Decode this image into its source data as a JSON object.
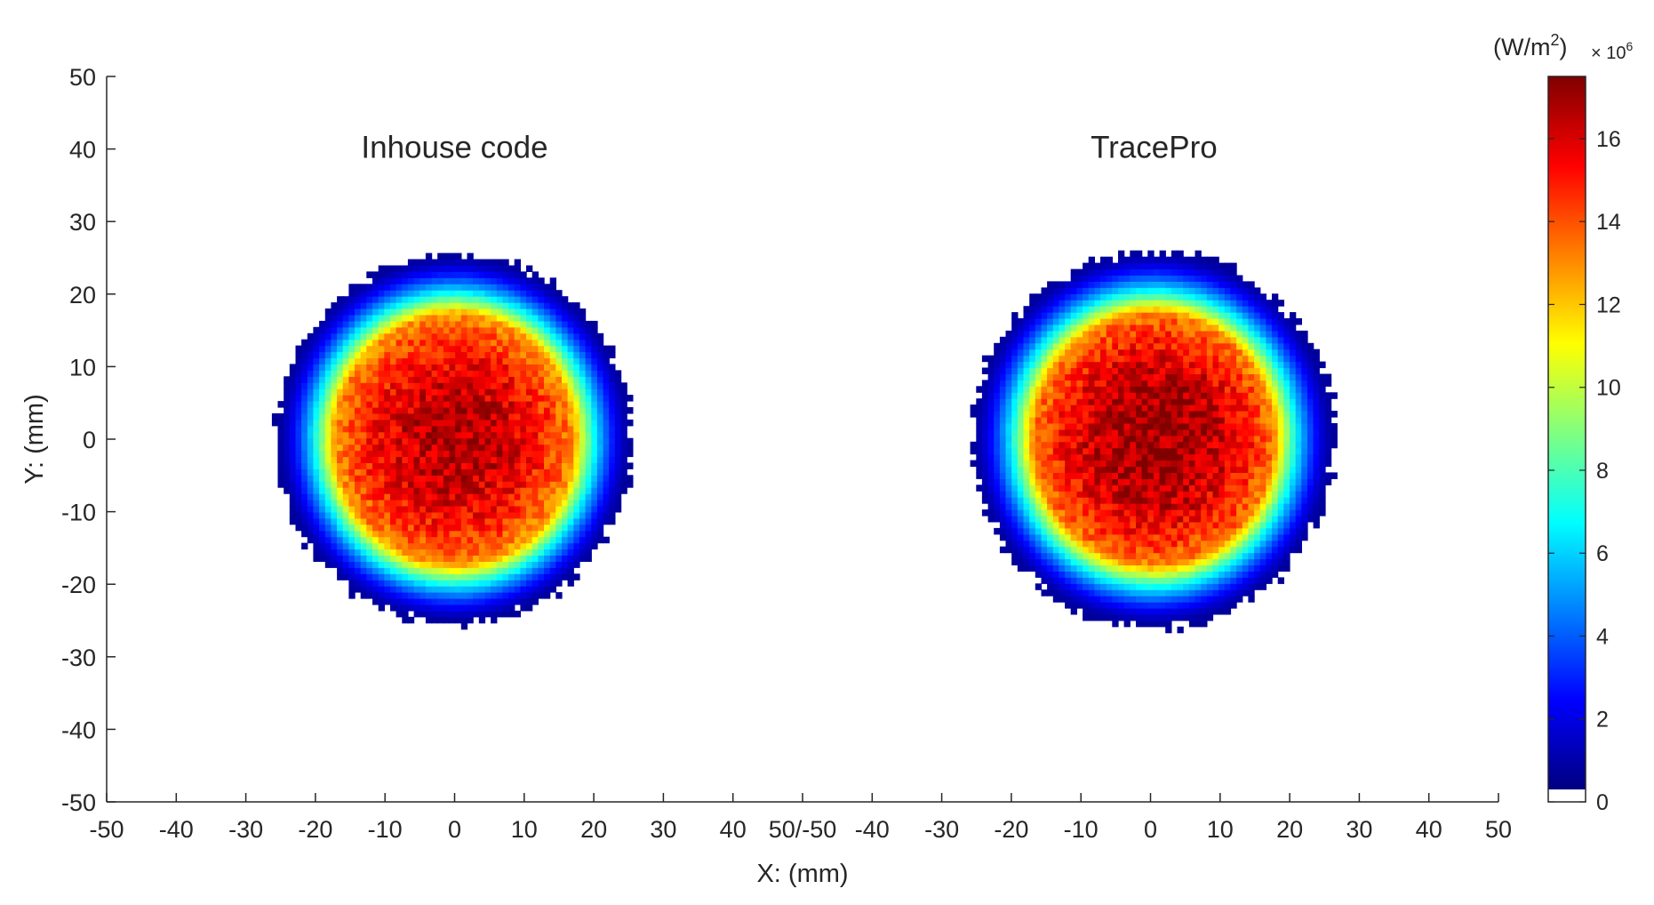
{
  "chart_data": {
    "type": "heatmap",
    "title": "",
    "xlabel": "X: (mm)",
    "ylabel": "Y: (mm)",
    "xlim": [
      -50,
      50
    ],
    "ylim": [
      -50,
      50
    ],
    "x_ticks": [
      "-50",
      "-40",
      "-30",
      "-20",
      "-10",
      "0",
      "10",
      "20",
      "30",
      "40",
      "50/-50",
      "-40",
      "-30",
      "-20",
      "-10",
      "0",
      "10",
      "20",
      "30",
      "40",
      "50"
    ],
    "y_ticks": [
      "50",
      "40",
      "30",
      "20",
      "10",
      "0",
      "-10",
      "-20",
      "-30",
      "-40",
      "-50"
    ],
    "panels": [
      {
        "label": "Inhouse code",
        "center_mm": [
          0,
          0
        ],
        "spot_radius_mm": 25.5,
        "plateau_radius_mm": 17,
        "peak_value_e6": 16.5
      },
      {
        "label": "TracePro",
        "center_mm": [
          0.5,
          0
        ],
        "spot_radius_mm": 26,
        "plateau_radius_mm": 17,
        "peak_value_e6": 17
      }
    ],
    "colorbar": {
      "title": "(W/m",
      "title_sup": "2",
      "title_close": ")",
      "exponent": "× 10",
      "exponent_sup": "6",
      "colormap": "jet",
      "min": 0,
      "max": 17.5,
      "ticks": [
        "0",
        "2",
        "4",
        "6",
        "8",
        "10",
        "12",
        "14",
        "16"
      ]
    },
    "grid": false
  }
}
